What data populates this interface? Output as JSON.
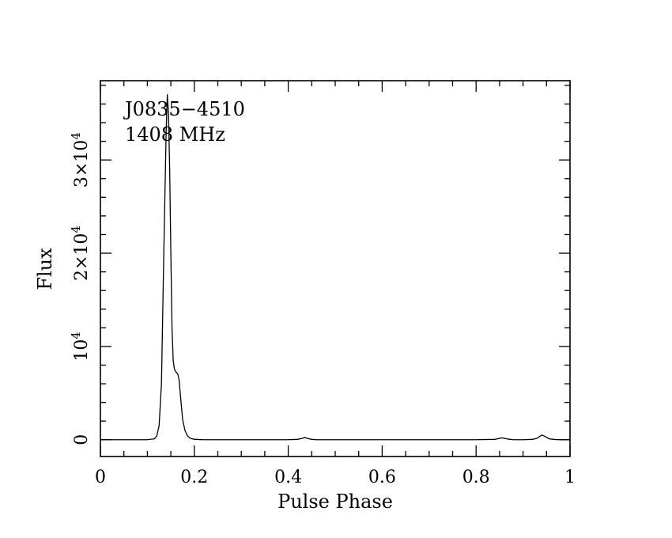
{
  "chart_data": {
    "type": "line",
    "annotations": [
      "J0835−4510",
      "1408 MHz"
    ],
    "xlabel": "Pulse Phase",
    "ylabel": "Flux",
    "xlim": [
      0,
      1
    ],
    "ylim": [
      -1800,
      38500
    ],
    "x_ticks": [
      {
        "value": 0,
        "label": "0"
      },
      {
        "value": 0.2,
        "label": "0.2"
      },
      {
        "value": 0.4,
        "label": "0.4"
      },
      {
        "value": 0.6,
        "label": "0.6"
      },
      {
        "value": 0.8,
        "label": "0.8"
      },
      {
        "value": 1,
        "label": "1"
      }
    ],
    "y_ticks": [
      {
        "value": 0,
        "mantissa": "0",
        "exponent": ""
      },
      {
        "value": 10000,
        "mantissa": "10",
        "exponent": "4"
      },
      {
        "value": 20000,
        "mantissa": "2×10",
        "exponent": "4"
      },
      {
        "value": 30000,
        "mantissa": "3×10",
        "exponent": "4"
      }
    ],
    "grid": false,
    "color": "#000000",
    "x": [
      0.0,
      0.05,
      0.1,
      0.115,
      0.12,
      0.125,
      0.13,
      0.135,
      0.14,
      0.1425,
      0.145,
      0.1475,
      0.15,
      0.1525,
      0.155,
      0.1575,
      0.16,
      0.1625,
      0.165,
      0.1675,
      0.17,
      0.1725,
      0.175,
      0.18,
      0.185,
      0.19,
      0.195,
      0.2,
      0.21,
      0.22,
      0.25,
      0.3,
      0.4,
      0.42,
      0.43,
      0.435,
      0.44,
      0.45,
      0.46,
      0.5,
      0.6,
      0.7,
      0.8,
      0.84,
      0.85,
      0.855,
      0.86,
      0.87,
      0.88,
      0.9,
      0.92,
      0.93,
      0.935,
      0.94,
      0.945,
      0.95,
      0.955,
      0.96,
      0.97,
      0.98,
      1.0
    ],
    "y": [
      0,
      0,
      0,
      100,
      400,
      1500,
      6000,
      20000,
      33000,
      37000,
      35000,
      29000,
      20000,
      12000,
      8500,
      7600,
      7300,
      7200,
      7000,
      6400,
      5000,
      3600,
      2200,
      1000,
      450,
      200,
      100,
      50,
      20,
      0,
      0,
      0,
      0,
      40,
      150,
      250,
      150,
      40,
      0,
      0,
      0,
      0,
      0,
      40,
      150,
      200,
      150,
      50,
      0,
      0,
      40,
      150,
      350,
      500,
      400,
      250,
      120,
      60,
      20,
      0,
      0
    ]
  }
}
